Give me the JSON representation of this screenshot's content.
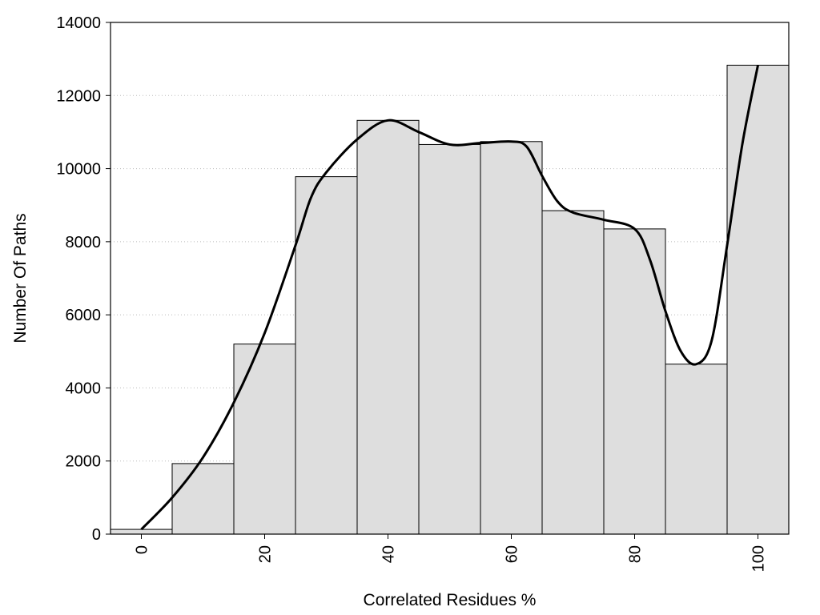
{
  "chart_data": {
    "type": "bar",
    "title": "",
    "xlabel": "Correlated Residues %",
    "ylabel": "Number Of Paths",
    "xlim": [
      -5,
      105
    ],
    "ylim": [
      0,
      14000
    ],
    "grid": "horizontal dotted",
    "x_ticks": [
      "0",
      "20",
      "40",
      "60",
      "80",
      "100"
    ],
    "y_ticks": [
      "0",
      "2000",
      "4000",
      "6000",
      "8000",
      "10000",
      "12000",
      "14000"
    ],
    "categories": [
      0,
      10,
      20,
      30,
      40,
      50,
      60,
      70,
      80,
      90,
      100
    ],
    "bin_width": 10,
    "values": [
      130,
      1930,
      5200,
      9780,
      11320,
      10660,
      10740,
      8850,
      8350,
      4650,
      12830
    ],
    "bar_color": "#dedede",
    "series": [
      {
        "type": "line",
        "color": "#000000",
        "x": [
          0,
          5,
          10,
          15,
          20,
          25,
          27.5,
          30,
          35,
          40,
          45,
          50,
          55,
          60,
          62.5,
          65,
          67.5,
          70,
          75,
          80,
          82.5,
          85,
          87.5,
          90,
          92.5,
          95,
          97.5,
          100
        ],
        "y": [
          130,
          1000,
          2100,
          3600,
          5500,
          7900,
          9200,
          9900,
          10800,
          11320,
          11000,
          10660,
          10700,
          10740,
          10600,
          9800,
          9100,
          8800,
          8600,
          8350,
          7500,
          6100,
          5000,
          4650,
          5300,
          7900,
          10700,
          12830
        ]
      }
    ]
  }
}
